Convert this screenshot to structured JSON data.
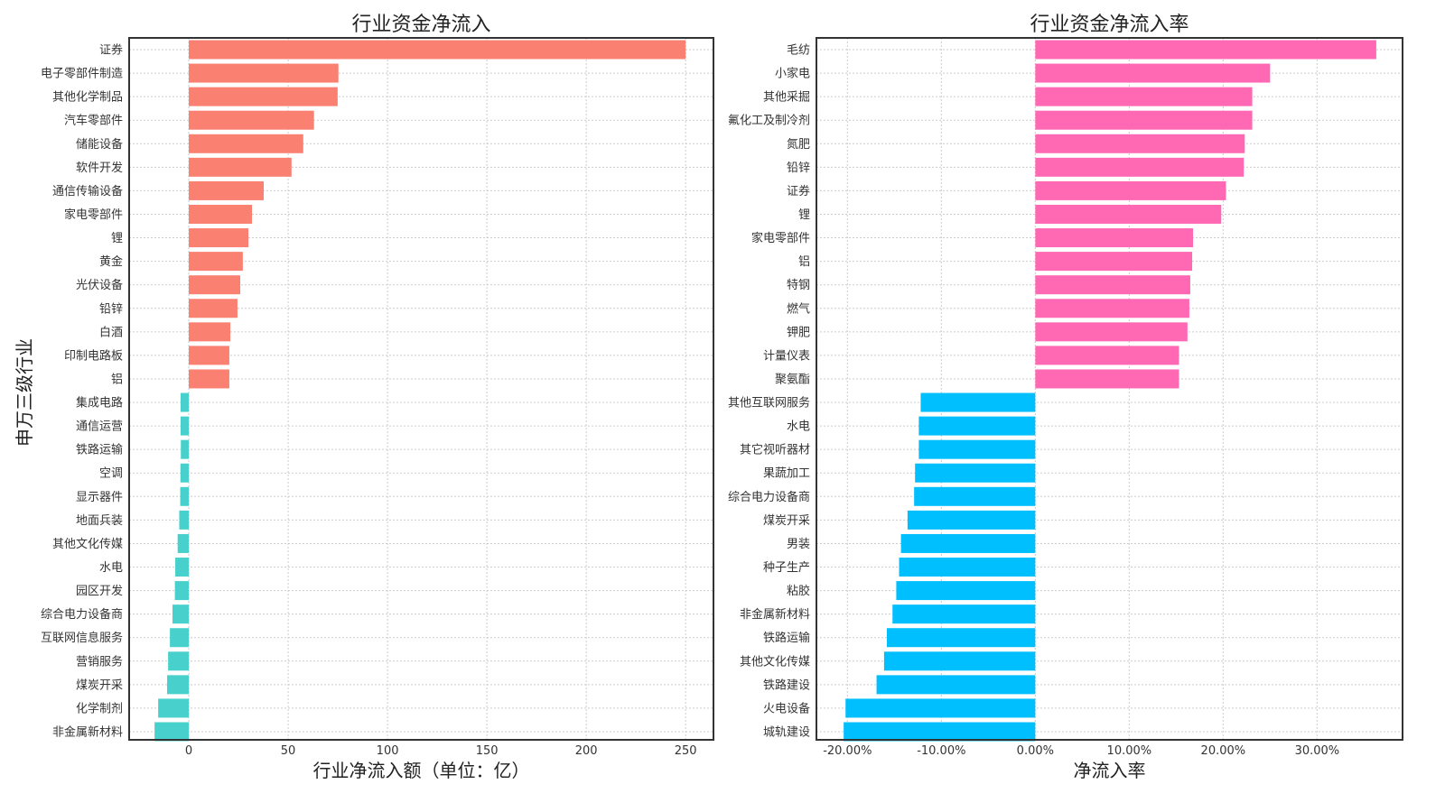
{
  "ylabel": "申万三级行业",
  "chart_data": [
    {
      "type": "bar",
      "orientation": "horizontal",
      "title": "行业资金净流入",
      "xlabel": "行业净流入额（单位：亿）",
      "ylabel": "申万三级行业",
      "xlim": [
        -30,
        264
      ],
      "xticks": [
        0,
        50,
        100,
        150,
        200,
        250
      ],
      "xtick_labels": [
        "0",
        "50",
        "100",
        "150",
        "200",
        "250"
      ],
      "grid": true,
      "positive_color": "#FA8072",
      "negative_color": "#48D1CC",
      "categories": [
        "证券",
        "电子零部件制造",
        "其他化学制品",
        "汽车零部件",
        "储能设备",
        "软件开发",
        "通信传输设备",
        "家电零部件",
        "锂",
        "黄金",
        "光伏设备",
        "铅锌",
        "白酒",
        "印制电路板",
        "铝",
        "集成电路",
        "通信运营",
        "铁路运输",
        "空调",
        "显示器件",
        "地面兵装",
        "其他文化传媒",
        "水电",
        "园区开发",
        "综合电力设备商",
        "互联网信息服务",
        "营销服务",
        "煤炭开采",
        "化学制剂",
        "非金属新材料"
      ],
      "values": [
        250.0,
        75.3,
        74.9,
        63.0,
        57.6,
        51.7,
        37.7,
        31.8,
        30.0,
        27.2,
        25.9,
        24.5,
        20.9,
        20.4,
        20.4,
        -4.1,
        -4.1,
        -4.0,
        -4.2,
        -4.3,
        -4.8,
        -5.6,
        -6.8,
        -7.0,
        -8.2,
        -9.5,
        -10.4,
        -10.9,
        -15.4,
        -17.2
      ]
    },
    {
      "type": "bar",
      "orientation": "horizontal",
      "title": "行业资金净流入率",
      "xlabel": "净流入率",
      "xlim": [
        -23.3,
        39.1
      ],
      "xticks": [
        -20,
        -10,
        0,
        10,
        20,
        30
      ],
      "xtick_labels": [
        "-20.00%",
        "-10.00%",
        "0.00%",
        "10.00%",
        "20.00%",
        "30.00%"
      ],
      "grid": true,
      "positive_color": "#FF69B4",
      "negative_color": "#00BFFF",
      "categories": [
        "毛纺",
        "小家电",
        "其他采掘",
        "氟化工及制冷剂",
        "氮肥",
        "铅锌",
        "证券",
        "锂",
        "家电零部件",
        "铝",
        "特钢",
        "燃气",
        "钾肥",
        "计量仪表",
        "聚氨酯",
        "其他互联网服务",
        "水电",
        "其它视听器材",
        "果蔬加工",
        "综合电力设备商",
        "煤炭开采",
        "男装",
        "种子生产",
        "粘胶",
        "非金属新材料",
        "铁路运输",
        "其他文化传媒",
        "铁路建设",
        "火电设备",
        "城轨建设"
      ],
      "values": [
        36.3,
        25.0,
        23.1,
        23.1,
        22.3,
        22.2,
        20.3,
        19.8,
        16.8,
        16.7,
        16.5,
        16.4,
        16.2,
        15.3,
        15.3,
        -12.2,
        -12.4,
        -12.4,
        -12.8,
        -12.9,
        -13.6,
        -14.3,
        -14.5,
        -14.8,
        -15.2,
        -15.8,
        -16.1,
        -16.9,
        -20.2,
        -20.4
      ]
    }
  ]
}
